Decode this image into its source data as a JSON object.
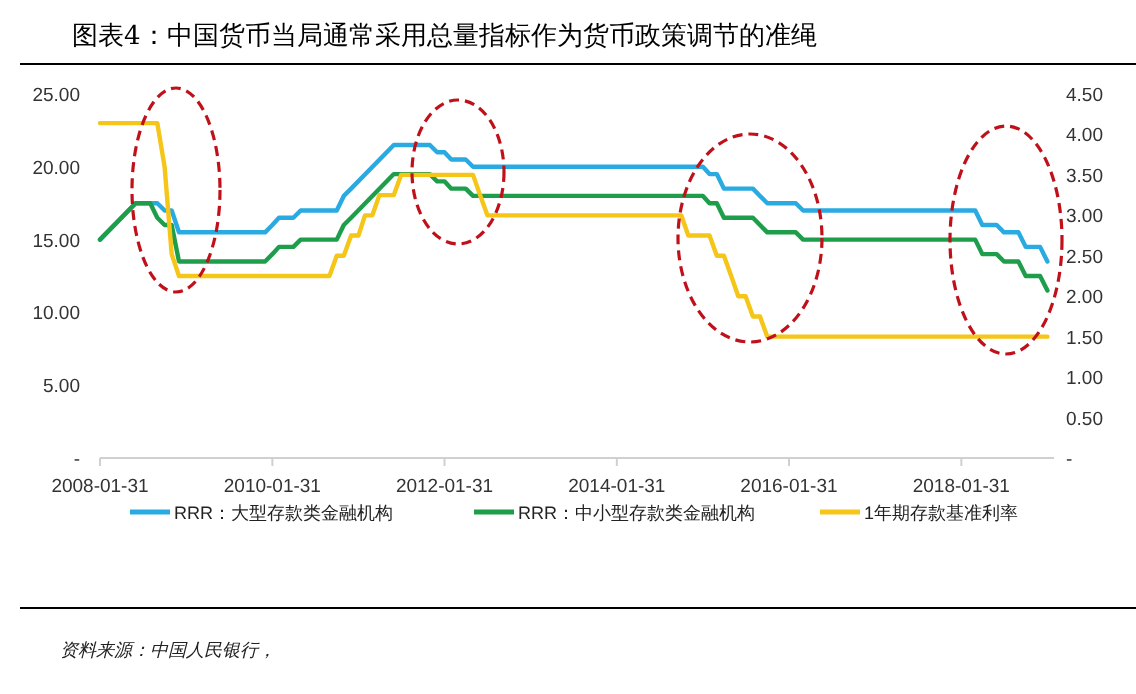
{
  "chart_data": {
    "type": "line",
    "title": "图表4：中国货币当局通常采用总量指标作为货币政策调节的准绳",
    "xlim": [
      "2008-01-31",
      "2019-02-28"
    ],
    "xticks": [
      "2008-01-31",
      "2010-01-31",
      "2012-01-31",
      "2014-01-31",
      "2016-01-31",
      "2018-01-31"
    ],
    "ylim": [
      0,
      25
    ],
    "yticks": [
      {
        "value": 0,
        "label": "-"
      },
      {
        "value": 5,
        "label": "5.00"
      },
      {
        "value": 10,
        "label": "10.00"
      },
      {
        "value": 15,
        "label": "15.00"
      },
      {
        "value": 20,
        "label": "20.00"
      },
      {
        "value": 25,
        "label": "25.00"
      }
    ],
    "y2lim": [
      0,
      4.5
    ],
    "y2ticks": [
      {
        "value": 0,
        "label": "-"
      },
      {
        "value": 0.5,
        "label": "0.50"
      },
      {
        "value": 1,
        "label": "1.00"
      },
      {
        "value": 1.5,
        "label": "1.50"
      },
      {
        "value": 2,
        "label": "2.00"
      },
      {
        "value": 2.5,
        "label": "2.50"
      },
      {
        "value": 3,
        "label": "3.00"
      },
      {
        "value": 3.5,
        "label": "3.50"
      },
      {
        "value": 4,
        "label": "4.00"
      },
      {
        "value": 4.5,
        "label": "4.50"
      }
    ],
    "legend": "bottom",
    "series": [
      {
        "name": "RRR：大型存款类金融机构",
        "color": "#29abe2",
        "x": [
          "2008-01-31",
          "2008-06-30",
          "2008-09-30",
          "2008-10-31",
          "2008-11-30",
          "2008-12-31",
          "2009-12-31",
          "2010-01-31",
          "2010-02-28",
          "2010-04-30",
          "2010-05-31",
          "2010-10-31",
          "2010-11-30",
          "2010-12-31",
          "2011-06-30",
          "2011-11-30",
          "2011-12-31",
          "2012-01-31",
          "2012-02-29",
          "2012-04-30",
          "2012-05-31",
          "2015-01-31",
          "2015-02-28",
          "2015-03-31",
          "2015-04-30",
          "2015-08-31",
          "2015-09-30",
          "2015-10-31",
          "2016-02-29",
          "2016-03-31",
          "2018-03-31",
          "2018-04-30",
          "2018-06-30",
          "2018-07-31",
          "2018-09-30",
          "2018-10-31",
          "2018-12-31",
          "2019-01-31"
        ],
        "values": [
          15,
          17.5,
          17.5,
          17,
          17,
          15.5,
          15.5,
          16,
          16.5,
          16.5,
          17,
          17,
          18,
          18.5,
          21.5,
          21.5,
          21,
          21,
          20.5,
          20.5,
          20,
          20,
          19.5,
          19.5,
          18.5,
          18.5,
          18,
          17.5,
          17.5,
          17,
          17,
          16,
          16,
          15.5,
          15.5,
          14.5,
          14.5,
          13.5
        ]
      },
      {
        "name": "RRR：中小型存款类金融机构",
        "color": "#1e9e4a",
        "x": [
          "2008-01-31",
          "2008-06-30",
          "2008-08-31",
          "2008-09-30",
          "2008-10-31",
          "2008-11-30",
          "2008-12-31",
          "2009-12-31",
          "2010-01-31",
          "2010-02-28",
          "2010-04-30",
          "2010-05-31",
          "2010-10-31",
          "2010-11-30",
          "2010-12-31",
          "2011-06-30",
          "2011-11-30",
          "2011-12-31",
          "2012-01-31",
          "2012-02-29",
          "2012-04-30",
          "2012-05-31",
          "2015-01-31",
          "2015-02-28",
          "2015-03-31",
          "2015-04-30",
          "2015-08-31",
          "2015-09-30",
          "2015-10-31",
          "2016-02-29",
          "2016-03-31",
          "2018-03-31",
          "2018-04-30",
          "2018-06-30",
          "2018-07-31",
          "2018-09-30",
          "2018-10-31",
          "2018-12-31",
          "2019-01-31"
        ],
        "values": [
          15,
          17.5,
          17.5,
          16.5,
          16,
          16,
          13.5,
          13.5,
          14,
          14.5,
          14.5,
          15,
          15,
          16,
          16.5,
          19.5,
          19.5,
          19,
          19,
          18.5,
          18.5,
          18,
          18,
          17.5,
          17.5,
          16.5,
          16.5,
          16,
          15.5,
          15.5,
          15,
          15,
          14,
          14,
          13.5,
          13.5,
          12.5,
          12.5,
          11.5
        ]
      },
      {
        "name": "1年期存款基准利率",
        "color": "#f5c518",
        "axis": "y2",
        "x": [
          "2008-01-31",
          "2008-09-30",
          "2008-10-31",
          "2008-11-30",
          "2008-12-31",
          "2010-09-30",
          "2010-10-31",
          "2010-11-30",
          "2010-12-31",
          "2011-01-31",
          "2011-02-28",
          "2011-03-31",
          "2011-04-30",
          "2011-06-30",
          "2011-07-31",
          "2012-05-31",
          "2012-06-30",
          "2012-07-31",
          "2014-10-31",
          "2014-11-30",
          "2015-02-28",
          "2015-03-31",
          "2015-04-30",
          "2015-05-31",
          "2015-06-30",
          "2015-07-31",
          "2015-08-31",
          "2015-09-30",
          "2015-10-31",
          "2019-01-31"
        ],
        "values": [
          4.14,
          4.14,
          3.6,
          2.52,
          2.25,
          2.25,
          2.5,
          2.5,
          2.75,
          2.75,
          3,
          3,
          3.25,
          3.25,
          3.5,
          3.5,
          3.25,
          3,
          3,
          2.75,
          2.75,
          2.5,
          2.5,
          2.25,
          2,
          2,
          1.75,
          1.75,
          1.5,
          1.5
        ]
      }
    ],
    "annotations": [
      "资料来源：中国人民银行，"
    ]
  }
}
